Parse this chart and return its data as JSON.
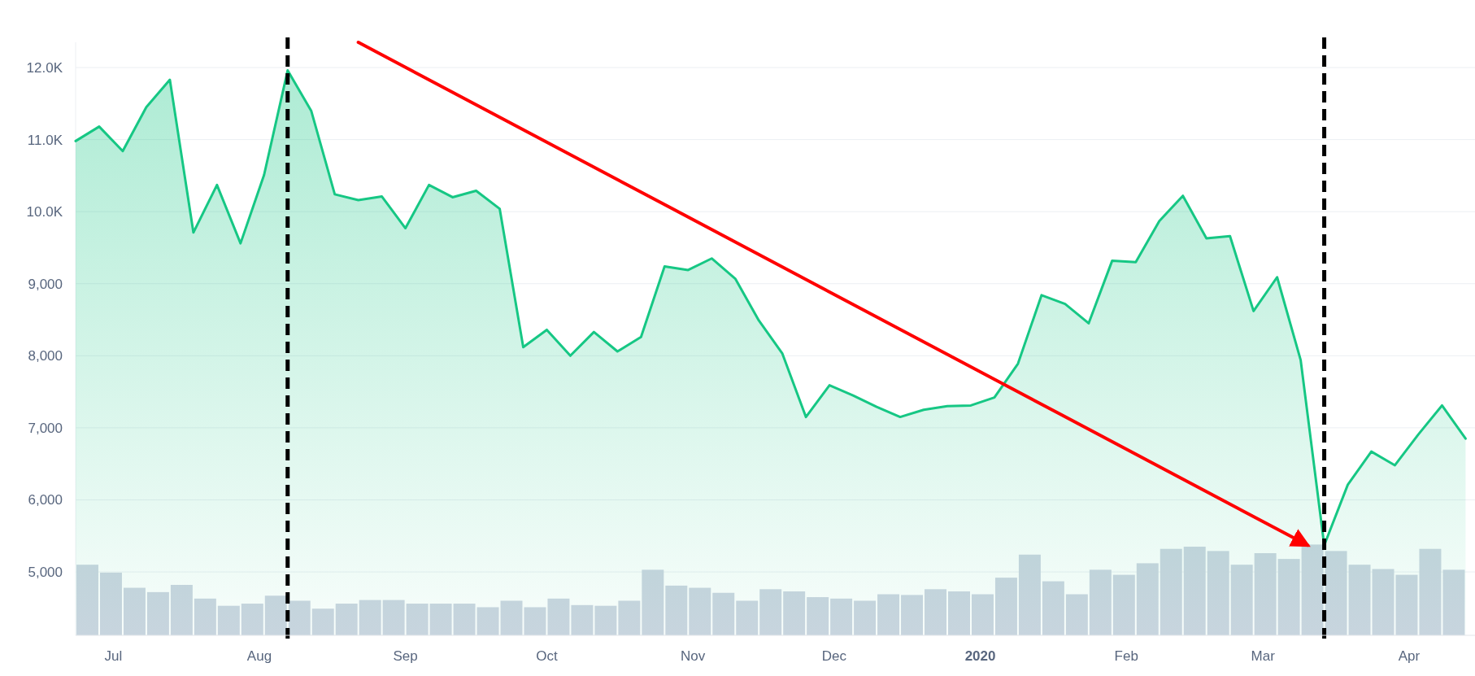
{
  "chart_data": {
    "type": "area",
    "x": [
      "2019-06-23",
      "2019-06-28",
      "2019-07-03",
      "2019-07-08",
      "2019-07-13",
      "2019-07-18",
      "2019-07-23",
      "2019-07-28",
      "2019-08-02",
      "2019-08-07",
      "2019-08-12",
      "2019-08-17",
      "2019-08-22",
      "2019-08-27",
      "2019-09-01",
      "2019-09-06",
      "2019-09-11",
      "2019-09-16",
      "2019-09-21",
      "2019-09-26",
      "2019-10-01",
      "2019-10-06",
      "2019-10-11",
      "2019-10-16",
      "2019-10-21",
      "2019-10-26",
      "2019-10-31",
      "2019-11-05",
      "2019-11-10",
      "2019-11-15",
      "2019-11-20",
      "2019-11-25",
      "2019-11-30",
      "2019-12-05",
      "2019-12-10",
      "2019-12-15",
      "2019-12-20",
      "2019-12-25",
      "2019-12-30",
      "2020-01-04",
      "2020-01-09",
      "2020-01-14",
      "2020-01-19",
      "2020-01-24",
      "2020-01-29",
      "2020-02-03",
      "2020-02-08",
      "2020-02-13",
      "2020-02-18",
      "2020-02-23",
      "2020-02-28",
      "2020-03-04",
      "2020-03-09",
      "2020-03-14",
      "2020-03-19",
      "2020-03-24",
      "2020-03-29",
      "2020-04-03",
      "2020-04-08",
      "2020-04-13"
    ],
    "series": [
      {
        "type": "bar",
        "color": "#cdd5e1",
        "x": [
          "2019-06-25T12:00",
          "2019-06-30T12:00",
          "2019-07-05T12:00",
          "2019-07-10T12:00",
          "2019-07-15T12:00",
          "2019-07-20T12:00",
          "2019-07-25T12:00",
          "2019-07-30T12:00",
          "2019-08-04T12:00",
          "2019-08-09T12:00",
          "2019-08-14T12:00",
          "2019-08-19T12:00",
          "2019-08-24T12:00",
          "2019-08-29T12:00",
          "2019-09-03T12:00",
          "2019-09-08T12:00",
          "2019-09-13T12:00",
          "2019-09-18T12:00",
          "2019-09-23T12:00",
          "2019-09-28T12:00",
          "2019-10-03T12:00",
          "2019-10-08T12:00",
          "2019-10-13T12:00",
          "2019-10-18T12:00",
          "2019-10-23T12:00",
          "2019-10-28T12:00",
          "2019-11-02T12:00",
          "2019-11-07T12:00",
          "2019-11-12T12:00",
          "2019-11-17T12:00",
          "2019-11-22T12:00",
          "2019-11-27T12:00",
          "2019-12-02T12:00",
          "2019-12-07T12:00",
          "2019-12-12T12:00",
          "2019-12-17T12:00",
          "2019-12-22T12:00",
          "2019-12-27T12:00",
          "2020-01-01T12:00",
          "2020-01-06T12:00",
          "2020-01-11T12:00",
          "2020-01-16T12:00",
          "2020-01-21T12:00",
          "2020-01-26T12:00",
          "2020-01-31T12:00",
          "2020-02-05T12:00",
          "2020-02-10T12:00",
          "2020-02-15T12:00",
          "2020-02-20T12:00",
          "2020-02-25T12:00",
          "2020-03-01T12:00",
          "2020-03-06T12:00",
          "2020-03-11T12:00",
          "2020-03-16T12:00",
          "2020-03-21T12:00",
          "2020-03-26T12:00",
          "2020-03-31T12:00",
          "2020-04-05T12:00",
          "2020-04-10T12:00"
        ],
        "values": [
          5100,
          4990,
          4780,
          4720,
          4820,
          4630,
          4530,
          4560,
          4670,
          4600,
          4490,
          4560,
          4610,
          4610,
          4560,
          4560,
          4560,
          4510,
          4600,
          4510,
          4630,
          4540,
          4530,
          4600,
          5030,
          4810,
          4780,
          4710,
          4600,
          4760,
          4730,
          4650,
          4630,
          4600,
          4690,
          4680,
          4760,
          4730,
          4690,
          4920,
          5240,
          4870,
          4690,
          5030,
          4960,
          5120,
          5320,
          5350,
          5290,
          5100,
          5260,
          5180,
          5380,
          5290,
          5100,
          5040,
          4960,
          5320,
          5030
        ]
      },
      {
        "color": "#16c784",
        "values": [
          10980,
          11180,
          10840,
          11450,
          11830,
          9710,
          10370,
          9560,
          10510,
          11960,
          11400,
          10240,
          10160,
          10210,
          9770,
          10370,
          10200,
          10290,
          10040,
          8120,
          8360,
          8000,
          8330,
          8060,
          8260,
          9240,
          9190,
          9350,
          9070,
          8490,
          8030,
          7150,
          7590,
          7450,
          7290,
          7150,
          7250,
          7300,
          7310,
          7420,
          7890,
          8840,
          8720,
          8450,
          9320,
          9300,
          9870,
          10220,
          9630,
          9660,
          8620,
          9090,
          7940,
          5370,
          6210,
          6670,
          6480,
          6910,
          7310,
          6850
        ]
      },
      {
        "type": "line",
        "color": "#ff0000",
        "x": [
          "2019-08-22",
          "2020-03-10T12:00"
        ],
        "values": [
          12350,
          5370
        ]
      }
    ],
    "xlim": [
      "2019-06-23",
      "2020-04-15"
    ],
    "xticks": [
      {
        "value": "2019-07-01",
        "label": "Jul"
      },
      {
        "value": "2019-08-01",
        "label": "Aug"
      },
      {
        "value": "2019-09-01",
        "label": "Sep"
      },
      {
        "value": "2019-10-01",
        "label": "Oct"
      },
      {
        "value": "2019-11-01",
        "label": "Nov"
      },
      {
        "value": "2019-12-01",
        "label": "Dec"
      },
      {
        "value": "2020-01-01",
        "label": "2020"
      },
      {
        "value": "2020-02-01",
        "label": "Feb"
      },
      {
        "value": "2020-03-01",
        "label": "Mar"
      },
      {
        "value": "2020-04-01",
        "label": "Apr"
      }
    ],
    "ylim": [
      4120,
      12350
    ],
    "yticks": [
      {
        "value": 5000,
        "label": "5,000"
      },
      {
        "value": 6000,
        "label": "6,000"
      },
      {
        "value": 7000,
        "label": "7,000"
      },
      {
        "value": 8000,
        "label": "8,000"
      },
      {
        "value": 9000,
        "label": "9,000"
      },
      {
        "value": 10000,
        "label": "10.0K"
      },
      {
        "value": 11000,
        "label": "11.0K"
      },
      {
        "value": 12000,
        "label": "12.0K"
      }
    ],
    "grid": "y",
    "ref_lines": [
      {
        "axis": "x",
        "value": "2019-08-07",
        "color": "#000000",
        "line_style": "dashed"
      },
      {
        "axis": "x",
        "value": "2020-03-14",
        "color": "#000000",
        "line_style": "dashed"
      }
    ]
  }
}
